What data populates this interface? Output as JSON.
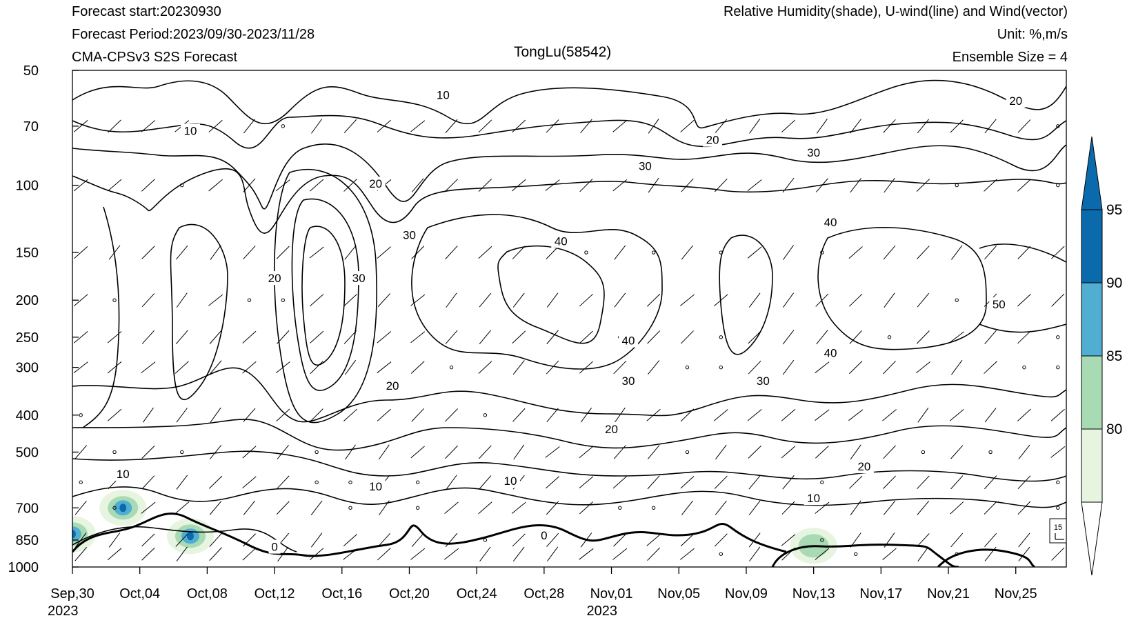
{
  "header": {
    "forecast_start": "Forecast start:20230930",
    "forecast_period": "Forecast Period:2023/09/30-2023/11/28",
    "model": "CMA-CPSv3 S2S Forecast",
    "fields": "Relative Humidity(shade), U-wind(line) and Wind(vector)",
    "unit": "Unit: %,m/s",
    "ensemble": "Ensemble Size = 4",
    "station": "TongLu(58542)"
  },
  "chart_data": {
    "type": "heatmap",
    "title": "TongLu(58542)",
    "x_start": "2023-09-30",
    "x_end": "2023-11-28",
    "x_tick_labels": [
      "Sep,30\n2023",
      "Oct,04",
      "Oct,08",
      "Oct,12",
      "Oct,16",
      "Oct,20",
      "Oct,24",
      "Oct,28",
      "Nov,01\n2023",
      "Nov,05",
      "Nov,09",
      "Nov,13",
      "Nov,17",
      "Nov,21",
      "Nov,25"
    ],
    "x_tick_dates": [
      "2023-09-30",
      "2023-10-04",
      "2023-10-08",
      "2023-10-12",
      "2023-10-16",
      "2023-10-20",
      "2023-10-24",
      "2023-10-28",
      "2023-11-01",
      "2023-11-05",
      "2023-11-09",
      "2023-11-13",
      "2023-11-17",
      "2023-11-21",
      "2023-11-25"
    ],
    "y_scale": "log",
    "y_reversed": true,
    "ylim": [
      1000,
      50
    ],
    "y_ticks": [
      50,
      70,
      100,
      150,
      200,
      250,
      300,
      400,
      500,
      700,
      850,
      1000
    ],
    "colorbar": {
      "levels": [
        80,
        85,
        90,
        95
      ],
      "colors": [
        "#e6f4e0",
        "#a8dab4",
        "#50aed2",
        "#0a6aac"
      ],
      "end_colors": [
        "#ffffff",
        "#0a6aac"
      ]
    },
    "reference_vector": "15",
    "u_wind_contour_labels": [
      {
        "date": "2023-10-22",
        "p": 58,
        "v": "10"
      },
      {
        "date": "2023-10-07",
        "p": 72,
        "v": "10"
      },
      {
        "date": "2023-10-18",
        "p": 99,
        "v": "20"
      },
      {
        "date": "2023-11-03",
        "p": 89,
        "v": "30"
      },
      {
        "date": "2023-11-07",
        "p": 76,
        "v": "20"
      },
      {
        "date": "2023-11-13",
        "p": 82,
        "v": "30"
      },
      {
        "date": "2023-11-25",
        "p": 60,
        "v": "20"
      },
      {
        "date": "2023-10-20",
        "p": 135,
        "v": "30"
      },
      {
        "date": "2023-10-29",
        "p": 140,
        "v": "40"
      },
      {
        "date": "2023-11-14",
        "p": 125,
        "v": "40"
      },
      {
        "date": "2023-10-12",
        "p": 175,
        "v": "20"
      },
      {
        "date": "2023-10-17",
        "p": 175,
        "v": "30"
      },
      {
        "date": "2023-11-02",
        "p": 255,
        "v": "40"
      },
      {
        "date": "2023-11-24",
        "p": 205,
        "v": "50"
      },
      {
        "date": "2023-11-14",
        "p": 275,
        "v": "40"
      },
      {
        "date": "2023-11-02",
        "p": 325,
        "v": "30"
      },
      {
        "date": "2023-11-10",
        "p": 325,
        "v": "30"
      },
      {
        "date": "2023-10-19",
        "p": 335,
        "v": "20"
      },
      {
        "date": "2023-11-01",
        "p": 435,
        "v": "20"
      },
      {
        "date": "2023-11-16",
        "p": 545,
        "v": "20"
      },
      {
        "date": "2023-10-03",
        "p": 570,
        "v": "10"
      },
      {
        "date": "2023-10-18",
        "p": 615,
        "v": "10"
      },
      {
        "date": "2023-10-26",
        "p": 595,
        "v": "10"
      },
      {
        "date": "2023-11-13",
        "p": 660,
        "v": "10"
      },
      {
        "date": "2023-10-12",
        "p": 885,
        "v": "0"
      },
      {
        "date": "2023-10-28",
        "p": 825,
        "v": "0"
      }
    ],
    "humidity_patches": [
      {
        "date": "2023-09-30",
        "p": 820,
        "level": 95
      },
      {
        "date": "2023-10-03",
        "p": 700,
        "level": 95
      },
      {
        "date": "2023-10-07",
        "p": 830,
        "level": 95
      },
      {
        "date": "2023-11-13",
        "p": 880,
        "level": 85
      }
    ]
  }
}
